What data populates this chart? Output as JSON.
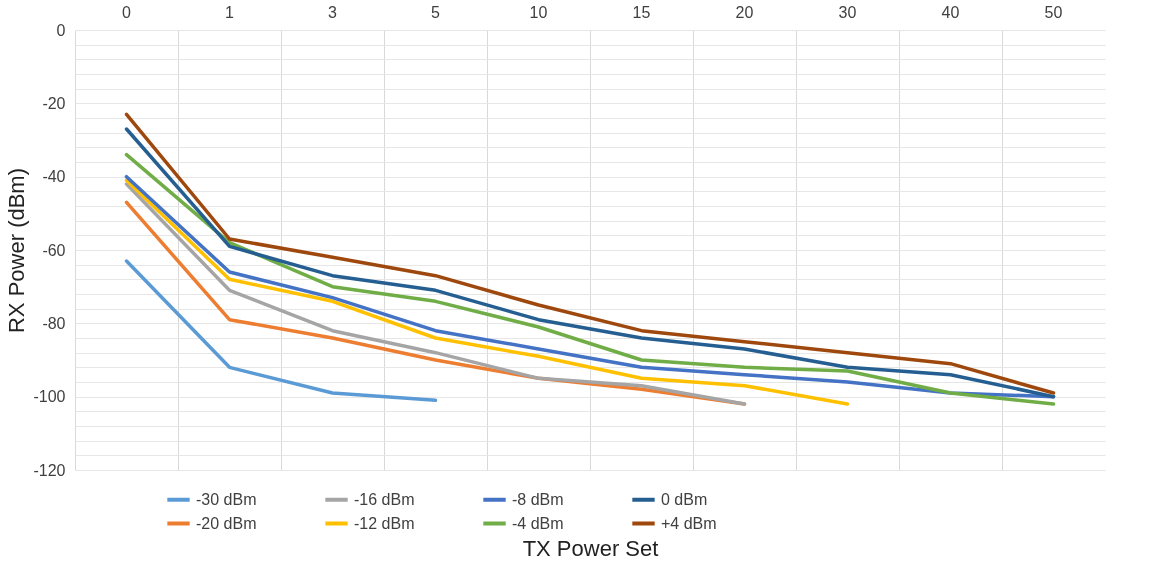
{
  "chart_data": {
    "type": "line",
    "xlabel": "TX Power Set",
    "ylabel": "RX Power (dBm)",
    "categories": [
      "0",
      "1",
      "3",
      "5",
      "10",
      "15",
      "20",
      "30",
      "40",
      "50"
    ],
    "ylim": [
      -120,
      0
    ],
    "yticks": [
      -120,
      {
        "value": -116,
        "label": null
      },
      {
        "value": -112,
        "label": null
      },
      {
        "value": -108,
        "label": null
      },
      {
        "value": -104,
        "label": null
      },
      -100,
      {
        "value": -96,
        "label": null
      },
      {
        "value": -92,
        "label": null
      },
      {
        "value": -88,
        "label": null
      },
      {
        "value": -84,
        "label": null
      },
      -80,
      {
        "value": -76,
        "label": null
      },
      {
        "value": -72,
        "label": null
      },
      {
        "value": -68,
        "label": null
      },
      {
        "value": -64,
        "label": null
      },
      -60,
      {
        "value": -56,
        "label": null
      },
      {
        "value": -52,
        "label": null
      },
      {
        "value": -48,
        "label": null
      },
      {
        "value": -44,
        "label": null
      },
      -40,
      {
        "value": -36,
        "label": null
      },
      {
        "value": -32,
        "label": null
      },
      {
        "value": -28,
        "label": null
      },
      {
        "value": -24,
        "label": null
      },
      -20,
      {
        "value": -16,
        "label": null
      },
      {
        "value": -12,
        "label": null
      },
      {
        "value": -8,
        "label": null
      },
      {
        "value": -4,
        "label": null
      },
      0
    ],
    "grid": true,
    "legend": "bottom",
    "marker": "none",
    "line_style": "solid",
    "series": [
      {
        "name": "-30 dBm",
        "color": "#5b9bd5",
        "values": [
          -63,
          -92,
          -99,
          -101,
          null,
          null,
          null,
          null,
          null,
          null
        ]
      },
      {
        "name": "-20 dBm",
        "color": "#ed7d31",
        "values": [
          -47,
          -79,
          -84,
          -90,
          -95,
          -98,
          -102,
          null,
          null,
          null
        ]
      },
      {
        "name": "-16 dBm",
        "color": "#a5a5a5",
        "values": [
          -42,
          -71,
          -82,
          -88,
          -95,
          -97,
          -102,
          null,
          null,
          null
        ]
      },
      {
        "name": "-12 dBm",
        "color": "#ffc000",
        "values": [
          -41,
          -68,
          -74,
          -84,
          -89,
          -95,
          -97,
          -102,
          null,
          null
        ]
      },
      {
        "name": "-8 dBm",
        "color": "#4472c4",
        "values": [
          -40,
          -66,
          -73,
          -82,
          -87,
          -92,
          -94,
          -96,
          -99,
          -100
        ]
      },
      {
        "name": "-4 dBm",
        "color": "#70ad47",
        "values": [
          -34,
          -58,
          -70,
          -74,
          -81,
          -90,
          -92,
          -93,
          -99,
          -102
        ]
      },
      {
        "name": "0 dBm",
        "color": "#255e91",
        "values": [
          -27,
          -59,
          -67,
          -71,
          -79,
          -84,
          -87,
          -92,
          -94,
          -100
        ]
      },
      {
        "name": "+4 dBm",
        "color": "#9e480e",
        "values": [
          -23,
          -57,
          -62,
          -67,
          -75,
          -82,
          -85,
          -88,
          -91,
          -99
        ]
      }
    ]
  }
}
